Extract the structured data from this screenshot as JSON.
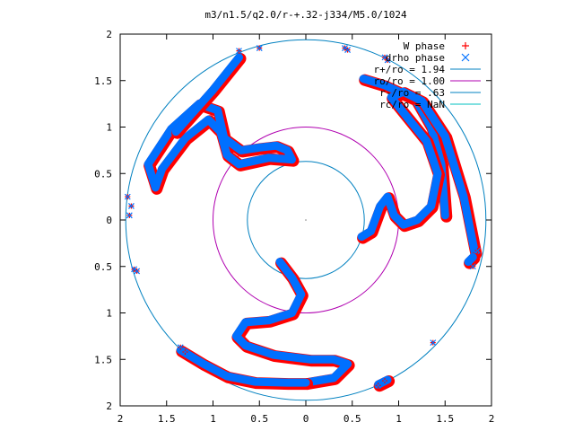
{
  "chart_data": {
    "type": "scatter",
    "title": "m3/n1.5/q2.0/r-+.32-j334/M5.0/1024",
    "xlim": [
      -2,
      2
    ],
    "ylim": [
      -2,
      2
    ],
    "x_ticks": [
      {
        "value": -2,
        "label": "2"
      },
      {
        "value": -1.5,
        "label": "1.5"
      },
      {
        "value": -1,
        "label": "1"
      },
      {
        "value": -0.5,
        "label": "0.5"
      },
      {
        "value": 0,
        "label": "0"
      },
      {
        "value": 0.5,
        "label": "0.5"
      },
      {
        "value": 1,
        "label": "1"
      },
      {
        "value": 1.5,
        "label": "1.5"
      },
      {
        "value": 2,
        "label": "2"
      }
    ],
    "y_ticks": [
      {
        "value": -2,
        "label": "2"
      },
      {
        "value": -1.5,
        "label": "1.5"
      },
      {
        "value": -1,
        "label": "1"
      },
      {
        "value": -0.5,
        "label": "0.5"
      },
      {
        "value": 0,
        "label": "0"
      },
      {
        "value": 0.5,
        "label": "0.5"
      },
      {
        "value": 1,
        "label": "1"
      },
      {
        "value": 1.5,
        "label": "1.5"
      },
      {
        "value": 2,
        "label": "2"
      }
    ],
    "grid": false,
    "legend_position": "top-right",
    "series": [
      {
        "name": "W phase",
        "marker": "plus",
        "color": "#ff0000"
      },
      {
        "name": "drho phase",
        "marker": "cross",
        "color": "#0070ff"
      }
    ],
    "circles": [
      {
        "label": "r+/ro = 1.94",
        "radius": 1.94,
        "color": "#0080c0"
      },
      {
        "label": "ro/ro = 1.00",
        "radius": 1.0,
        "color": "#b000b0"
      },
      {
        "label": "r-/ro = .63",
        "radius": 0.63,
        "color": "#0080c0"
      },
      {
        "label": "rc/ro = NaN",
        "radius": null,
        "color": "#00c0c0"
      }
    ],
    "curves": [
      [
        [
          -1.62,
          0.35
        ],
        [
          -1.7,
          0.6
        ],
        [
          -1.45,
          0.98
        ],
        [
          -1.15,
          1.25
        ],
        [
          -0.95,
          1.18
        ],
        [
          -0.88,
          0.88
        ],
        [
          -0.7,
          0.75
        ],
        [
          -0.5,
          0.78
        ],
        [
          -0.32,
          0.8
        ],
        [
          -0.2,
          0.75
        ],
        [
          -0.15,
          0.65
        ],
        [
          -0.4,
          0.67
        ],
        [
          -0.72,
          0.6
        ],
        [
          -0.85,
          0.7
        ],
        [
          -0.92,
          0.95
        ],
        [
          -1.05,
          1.08
        ],
        [
          -1.3,
          0.88
        ],
        [
          -1.55,
          0.55
        ],
        [
          -1.62,
          0.35
        ]
      ],
      [
        [
          -1.4,
          0.95
        ],
        [
          -1.0,
          1.4
        ],
        [
          -0.72,
          1.75
        ]
      ],
      [
        [
          1.5,
          0.05
        ],
        [
          1.46,
          0.6
        ],
        [
          1.35,
          1.0
        ],
        [
          1.18,
          1.3
        ],
        [
          0.85,
          1.45
        ],
        [
          0.62,
          1.52
        ]
      ],
      [
        [
          1.82,
          -0.35
        ],
        [
          1.7,
          0.25
        ],
        [
          1.5,
          0.9
        ],
        [
          1.25,
          1.28
        ],
        [
          1.05,
          1.38
        ],
        [
          0.92,
          1.32
        ],
        [
          1.08,
          1.12
        ],
        [
          1.3,
          0.85
        ],
        [
          1.42,
          0.5
        ],
        [
          1.35,
          0.15
        ],
        [
          1.2,
          0.0
        ],
        [
          1.05,
          -0.05
        ],
        [
          0.95,
          0.05
        ],
        [
          0.88,
          0.25
        ],
        [
          0.8,
          0.15
        ],
        [
          0.7,
          -0.12
        ],
        [
          0.6,
          -0.18
        ]
      ],
      [
        [
          -0.28,
          -0.45
        ],
        [
          -0.15,
          -0.62
        ],
        [
          -0.05,
          -0.8
        ],
        [
          -0.15,
          -1.0
        ],
        [
          -0.4,
          -1.08
        ],
        [
          -0.65,
          -1.1
        ],
        [
          -0.75,
          -1.25
        ],
        [
          -0.65,
          -1.35
        ],
        [
          -0.35,
          -1.45
        ],
        [
          0.05,
          -1.5
        ],
        [
          0.3,
          -1.5
        ],
        [
          0.45,
          -1.55
        ],
        [
          0.3,
          -1.7
        ],
        [
          0.0,
          -1.75
        ]
      ],
      [
        [
          -1.35,
          -1.4
        ],
        [
          -1.1,
          -1.55
        ],
        [
          -0.85,
          -1.68
        ],
        [
          -0.55,
          -1.74
        ],
        [
          -0.2,
          -1.75
        ],
        [
          0.0,
          -1.75
        ]
      ],
      [
        [
          0.78,
          -1.77
        ],
        [
          0.88,
          -1.72
        ]
      ],
      [
        [
          1.8,
          -0.4
        ],
        [
          1.75,
          -0.45
        ]
      ]
    ],
    "marks": [
      [
        -1.88,
        0.15
      ],
      [
        -1.92,
        0.25
      ],
      [
        -1.9,
        0.05
      ],
      [
        -1.85,
        -0.53
      ],
      [
        -1.82,
        -0.55
      ],
      [
        -1.35,
        -1.37
      ],
      [
        -1.3,
        -1.42
      ],
      [
        -0.72,
        1.82
      ],
      [
        -0.5,
        1.85
      ],
      [
        0.42,
        1.85
      ],
      [
        0.45,
        1.83
      ],
      [
        0.85,
        1.75
      ],
      [
        0.88,
        1.72
      ],
      [
        1.37,
        -1.32
      ],
      [
        0.78,
        -1.78
      ],
      [
        0.85,
        -1.73
      ],
      [
        1.85,
        -0.33
      ],
      [
        1.8,
        -0.5
      ]
    ],
    "center_marker": [
      0,
      0
    ]
  }
}
